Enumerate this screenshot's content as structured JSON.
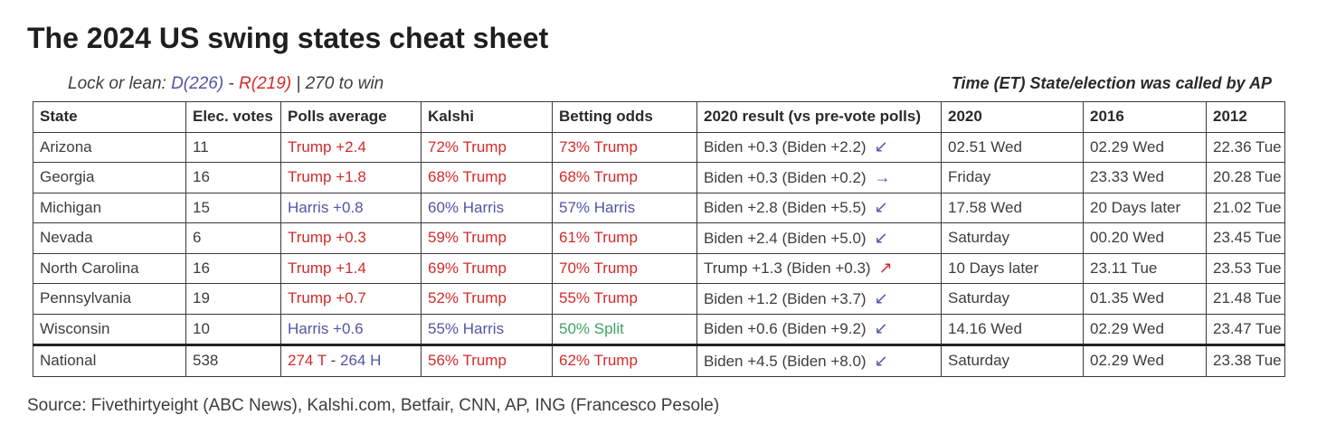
{
  "title": "The 2024 US swing states cheat sheet",
  "subtitle": {
    "prefix": "Lock or lean: ",
    "dem": "D(226)",
    "separator": " - ",
    "rep": "R(219)",
    "suffix": " | 270 to win"
  },
  "right_note": "Time (ET) State/election was called by AP",
  "source": "Source: Fivethirtyeight (ABC News), Kalshi.com, Betfair, CNN, AP, ING (Francesco Pesole)",
  "colors": {
    "red": "#d22b2b",
    "blue": "#5254a6",
    "green": "#3fa463",
    "dark": "#3d3d3d",
    "header": "#2a2a2a",
    "title": "#1f1f1f",
    "border": "#3a3a3a"
  },
  "table": {
    "headers": [
      "State",
      "Elec. votes",
      "Polls average",
      "Kalshi",
      "Betting odds",
      "2020 result (vs pre-vote polls)",
      "2020",
      "2016",
      "2012"
    ],
    "rows": [
      {
        "state": "Arizona",
        "ev": "11",
        "polls": [
          {
            "t": "Trump +2.4",
            "c": "red"
          }
        ],
        "kalshi": [
          {
            "t": "72% Trump",
            "c": "red"
          }
        ],
        "betting": [
          {
            "t": "73% Trump",
            "c": "red"
          }
        ],
        "result": [
          {
            "t": "Biden +0.3 (Biden +2.2)",
            "c": "dark"
          },
          {
            "t": "↙",
            "c": "blue",
            "a": true
          }
        ],
        "t2020": "02.51 Wed",
        "t2016": "02.29 Wed",
        "t2012": "22.36 Tue"
      },
      {
        "state": "Georgia",
        "ev": "16",
        "polls": [
          {
            "t": "Trump +1.8",
            "c": "red"
          }
        ],
        "kalshi": [
          {
            "t": "68% Trump",
            "c": "red"
          }
        ],
        "betting": [
          {
            "t": "68% Trump",
            "c": "red"
          }
        ],
        "result": [
          {
            "t": "Biden +0.3 (Biden +0.2)",
            "c": "dark"
          },
          {
            "t": "→",
            "c": "blue",
            "a": true
          }
        ],
        "t2020": "Friday",
        "t2016": "23.33 Wed",
        "t2012": "20.28 Tue"
      },
      {
        "state": "Michigan",
        "ev": "15",
        "polls": [
          {
            "t": "Harris +0.8",
            "c": "blue"
          }
        ],
        "kalshi": [
          {
            "t": "60% Harris",
            "c": "blue"
          }
        ],
        "betting": [
          {
            "t": "57% Harris",
            "c": "blue"
          }
        ],
        "result": [
          {
            "t": "Biden +2.8 (Biden +5.5)",
            "c": "dark"
          },
          {
            "t": "↙",
            "c": "blue",
            "a": true
          }
        ],
        "t2020": "17.58 Wed",
        "t2016": "20 Days later",
        "t2012": "21.02 Tue"
      },
      {
        "state": "Nevada",
        "ev": "6",
        "polls": [
          {
            "t": "Trump +0.3",
            "c": "red"
          }
        ],
        "kalshi": [
          {
            "t": "59% Trump",
            "c": "red"
          }
        ],
        "betting": [
          {
            "t": "61% Trump",
            "c": "red"
          }
        ],
        "result": [
          {
            "t": "Biden +2.4 (Biden +5.0)",
            "c": "dark"
          },
          {
            "t": "↙",
            "c": "blue",
            "a": true
          }
        ],
        "t2020": "Saturday",
        "t2016": "00.20 Wed",
        "t2012": "23.45 Tue"
      },
      {
        "state": "North Carolina",
        "ev": "16",
        "polls": [
          {
            "t": "Trump +1.4",
            "c": "red"
          }
        ],
        "kalshi": [
          {
            "t": "69% Trump",
            "c": "red"
          }
        ],
        "betting": [
          {
            "t": "70% Trump",
            "c": "red"
          }
        ],
        "result": [
          {
            "t": "Trump +1.3 (Biden +0.3)",
            "c": "dark"
          },
          {
            "t": "↗",
            "c": "red",
            "a": true
          }
        ],
        "t2020": "10 Days later",
        "t2016": "23.11 Tue",
        "t2012": "23.53 Tue"
      },
      {
        "state": "Pennsylvania",
        "ev": "19",
        "polls": [
          {
            "t": "Trump +0.7",
            "c": "red"
          }
        ],
        "kalshi": [
          {
            "t": "52% Trump",
            "c": "red"
          }
        ],
        "betting": [
          {
            "t": "55% Trump",
            "c": "red"
          }
        ],
        "result": [
          {
            "t": "Biden +1.2 (Biden +3.7)",
            "c": "dark"
          },
          {
            "t": "↙",
            "c": "blue",
            "a": true
          }
        ],
        "t2020": "Saturday",
        "t2016": "01.35 Wed",
        "t2012": "21.48 Tue"
      },
      {
        "state": "Wisconsin",
        "ev": "10",
        "polls": [
          {
            "t": "Harris +0.6",
            "c": "blue"
          }
        ],
        "kalshi": [
          {
            "t": "55% Harris",
            "c": "blue"
          }
        ],
        "betting": [
          {
            "t": "50% Split",
            "c": "green"
          }
        ],
        "result": [
          {
            "t": "Biden +0.6 (Biden +9.2)",
            "c": "dark"
          },
          {
            "t": "↙",
            "c": "blue",
            "a": true
          }
        ],
        "t2020": "14.16 Wed",
        "t2016": "02.29 Wed",
        "t2012": "23.47 Tue"
      },
      {
        "state": "National",
        "ev": "538",
        "polls": [
          {
            "t": "274 T ",
            "c": "red"
          },
          {
            "t": "- ",
            "c": "dark"
          },
          {
            "t": "264 H",
            "c": "blue"
          }
        ],
        "kalshi": [
          {
            "t": "56% Trump",
            "c": "red"
          }
        ],
        "betting": [
          {
            "t": "62% Trump",
            "c": "red"
          }
        ],
        "result": [
          {
            "t": "Biden +4.5 (Biden +8.0)",
            "c": "dark"
          },
          {
            "t": "↙",
            "c": "blue",
            "a": true
          }
        ],
        "t2020": "Saturday",
        "t2016": "02.29 Wed",
        "t2012": "23.38 Tue"
      }
    ]
  },
  "chart_data": {
    "type": "table",
    "title": "The 2024 US swing states cheat sheet",
    "subtitle": "Lock or lean: D(226) - R(219) | 270 to win",
    "note": "Time (ET) State/election was called by AP",
    "columns": [
      "State",
      "Elec. votes",
      "Polls average",
      "Kalshi",
      "Betting odds",
      "2020 result (vs pre-vote polls)",
      "2020",
      "2016",
      "2012"
    ],
    "rows": [
      [
        "Arizona",
        "11",
        "Trump +2.4",
        "72% Trump",
        "73% Trump",
        "Biden +0.3 (Biden +2.2) ↙",
        "02.51 Wed",
        "02.29 Wed",
        "22.36 Tue"
      ],
      [
        "Georgia",
        "16",
        "Trump +1.8",
        "68% Trump",
        "68% Trump",
        "Biden +0.3 (Biden +0.2) →",
        "Friday",
        "23.33 Wed",
        "20.28 Tue"
      ],
      [
        "Michigan",
        "15",
        "Harris +0.8",
        "60% Harris",
        "57% Harris",
        "Biden +2.8 (Biden +5.5) ↙",
        "17.58 Wed",
        "20 Days later",
        "21.02 Tue"
      ],
      [
        "Nevada",
        "6",
        "Trump +0.3",
        "59% Trump",
        "61% Trump",
        "Biden +2.4 (Biden +5.0) ↙",
        "Saturday",
        "00.20 Wed",
        "23.45 Tue"
      ],
      [
        "North Carolina",
        "16",
        "Trump +1.4",
        "69% Trump",
        "70% Trump",
        "Trump +1.3 (Biden +0.3) ↗",
        "10 Days later",
        "23.11 Tue",
        "23.53 Tue"
      ],
      [
        "Pennsylvania",
        "19",
        "Trump +0.7",
        "52% Trump",
        "55% Trump",
        "Biden +1.2 (Biden +3.7) ↙",
        "Saturday",
        "01.35 Wed",
        "21.48 Tue"
      ],
      [
        "Wisconsin",
        "10",
        "Harris +0.6",
        "55% Harris",
        "50% Split",
        "Biden +0.6 (Biden +9.2) ↙",
        "14.16 Wed",
        "02.29 Wed",
        "23.47 Tue"
      ],
      [
        "National",
        "538",
        "274 T - 264 H",
        "56% Trump",
        "62% Trump",
        "Biden +4.5 (Biden +8.0) ↙",
        "Saturday",
        "02.29 Wed",
        "23.38 Tue"
      ]
    ],
    "source": "Source: Fivethirtyeight (ABC News), Kalshi.com, Betfair, CNN, AP, ING (Francesco Pesole)"
  }
}
